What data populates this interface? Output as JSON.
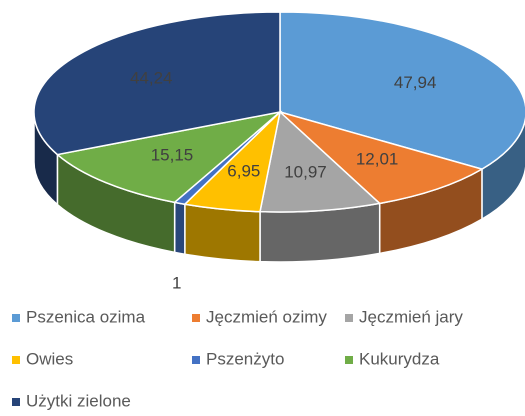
{
  "chart_data": {
    "type": "pie",
    "categories": [
      "Pszenica ozima",
      "Jęczmień ozimy",
      "Jęczmień jary",
      "Owies",
      "Pszenżyto",
      "Kukurydza",
      "Użytki zielone"
    ],
    "values": [
      47.94,
      12.01,
      10.97,
      6.95,
      1,
      15.15,
      44.24
    ],
    "value_labels": [
      "47,94",
      "12,01",
      "10,97",
      "6,95",
      "1",
      "15,15",
      "44,24"
    ],
    "colors": [
      "#5b9bd5",
      "#ed7d31",
      "#a5a5a5",
      "#ffc000",
      "#4472c4",
      "#70ad47",
      "#264478"
    ],
    "legend": "bottom"
  }
}
